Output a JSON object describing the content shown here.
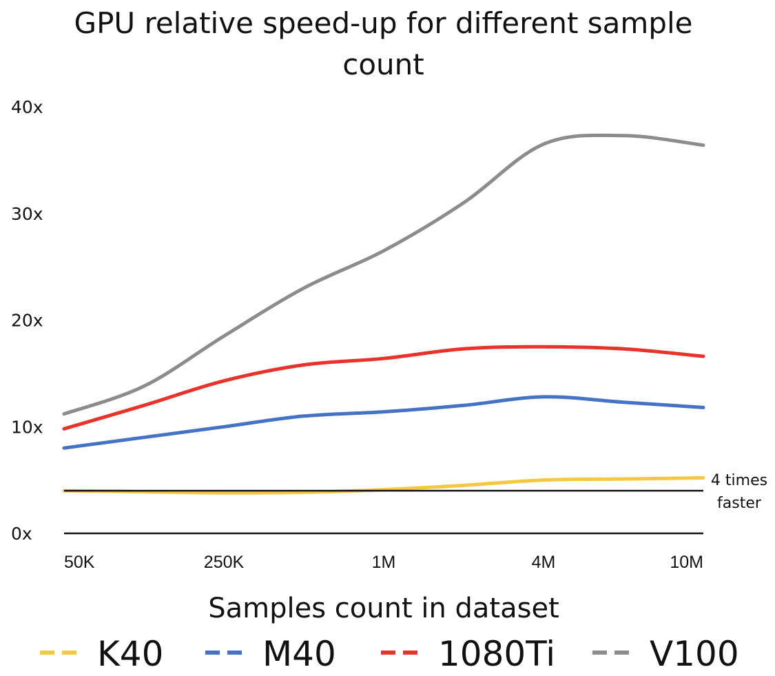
{
  "chart_data": {
    "type": "line",
    "title": "GPU  relative speed-up for different sample count",
    "xlabel": "Samples count in dataset",
    "ylabel": "",
    "categories": [
      "50K",
      "250K",
      "1M",
      "4M",
      "10M"
    ],
    "y_ticks": [
      "0x",
      "10x",
      "20x",
      "30x",
      "40x"
    ],
    "ylim": [
      0,
      40
    ],
    "grid": false,
    "legend_position": "bottom",
    "series": [
      {
        "name": "K40",
        "color": "#F5C842",
        "x": [
          0,
          0.5,
          1,
          1.5,
          2,
          2.5,
          3,
          3.5,
          4
        ],
        "values": [
          4.0,
          3.9,
          3.8,
          3.85,
          4.1,
          4.5,
          5.0,
          5.1,
          5.2
        ]
      },
      {
        "name": "M40",
        "color": "#4472C4",
        "x": [
          0,
          0.5,
          1,
          1.5,
          2,
          2.5,
          3,
          3.5,
          4
        ],
        "values": [
          8.0,
          9.0,
          10.0,
          11.0,
          11.4,
          12.0,
          12.8,
          12.3,
          11.8
        ]
      },
      {
        "name": "1080Ti",
        "color": "#E8322A",
        "x": [
          0,
          0.5,
          1,
          1.5,
          2,
          2.5,
          3,
          3.5,
          4
        ],
        "values": [
          9.8,
          12.0,
          14.3,
          15.8,
          16.4,
          17.3,
          17.5,
          17.3,
          16.6
        ]
      },
      {
        "name": "V100",
        "color": "#8C8C8C",
        "x": [
          0,
          0.5,
          1,
          1.5,
          2,
          2.5,
          3,
          3.5,
          4
        ],
        "values": [
          11.2,
          13.8,
          18.5,
          23.0,
          26.5,
          31.0,
          36.5,
          37.3,
          36.4
        ]
      }
    ],
    "reference_line": {
      "value": 4,
      "label_lines": [
        "4 times",
        "faster"
      ]
    }
  }
}
